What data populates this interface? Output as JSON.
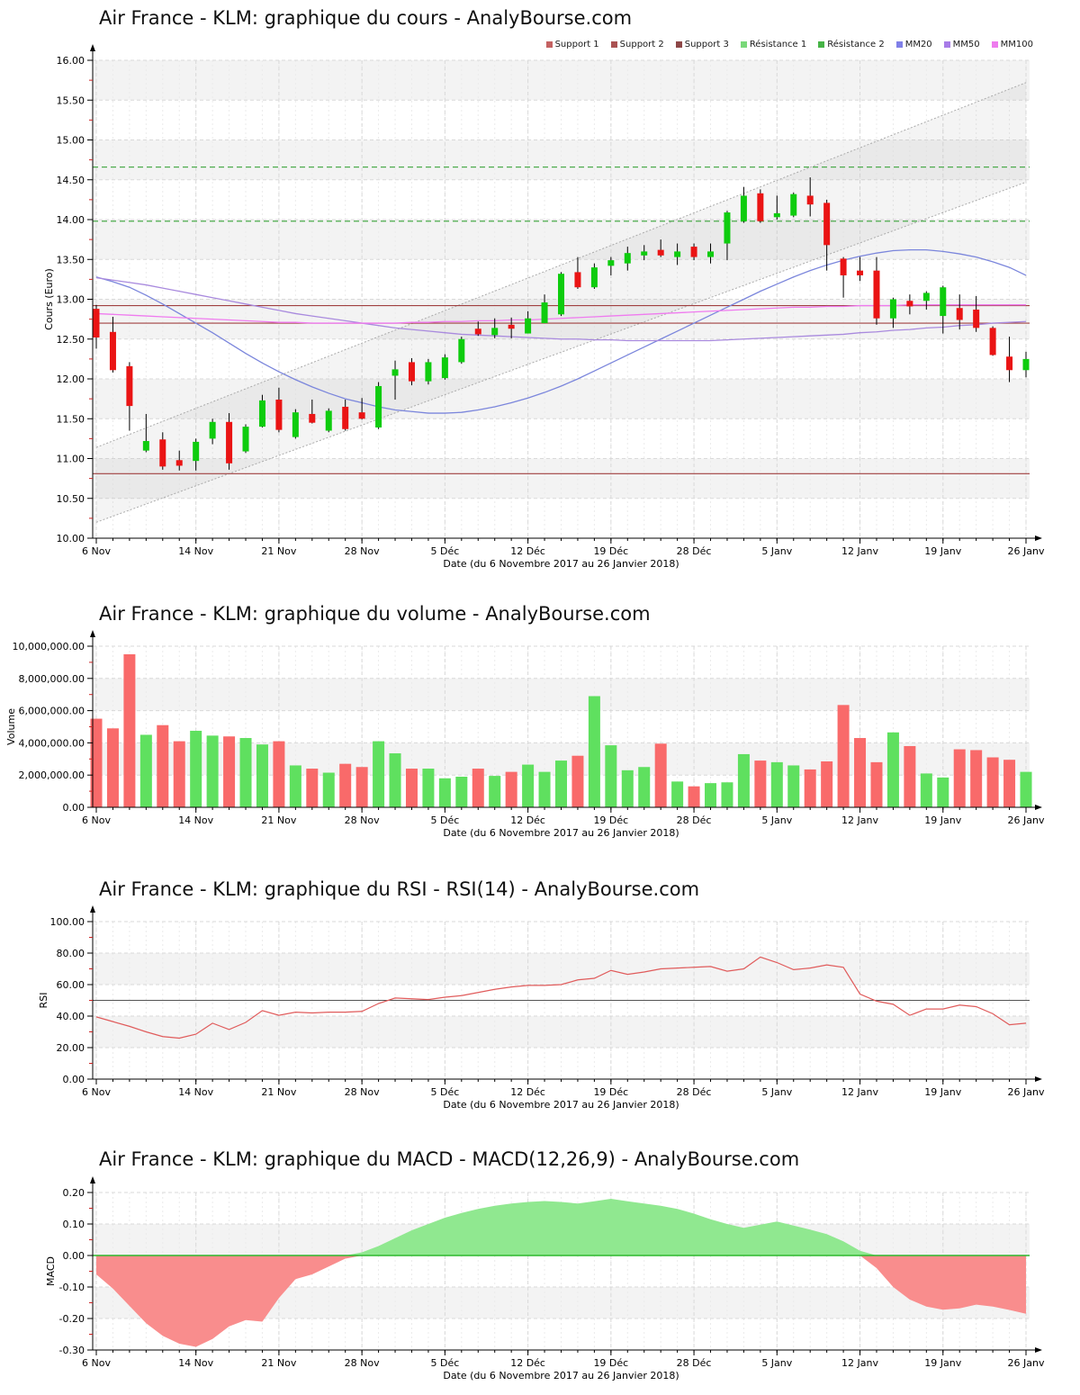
{
  "x_axis": {
    "label": "Date (du 6 Novembre 2017 au 26 Janvier 2018)",
    "days": 57,
    "ticks": [
      {
        "label": "6 Nov",
        "day": 0
      },
      {
        "label": "14 Nov",
        "day": 6
      },
      {
        "label": "21 Nov",
        "day": 11
      },
      {
        "label": "28 Nov",
        "day": 16
      },
      {
        "label": "5 Déc",
        "day": 21
      },
      {
        "label": "12 Déc",
        "day": 26
      },
      {
        "label": "19 Déc",
        "day": 31
      },
      {
        "label": "28 Déc",
        "day": 36
      },
      {
        "label": "5 Janv",
        "day": 41
      },
      {
        "label": "12 Janv",
        "day": 46
      },
      {
        "label": "19 Janv",
        "day": 51
      },
      {
        "label": "26 Janv",
        "day": 56
      }
    ]
  },
  "legend": {
    "items": [
      {
        "name": "legend-support-1",
        "label": "Support 1",
        "color": "#c46262"
      },
      {
        "name": "legend-support-2",
        "label": "Support 2",
        "color": "#aa5252"
      },
      {
        "name": "legend-support-3",
        "label": "Support 3",
        "color": "#8d4747"
      },
      {
        "name": "legend-resistance-1",
        "label": "Résistance 1",
        "color": "#79d879"
      },
      {
        "name": "legend-resistance-2",
        "label": "Résistance 2",
        "color": "#46b446"
      },
      {
        "name": "legend-mm20",
        "label": "MM20",
        "color": "#8080e8"
      },
      {
        "name": "legend-mm50",
        "label": "MM50",
        "color": "#a87ce8"
      },
      {
        "name": "legend-mm100",
        "label": "MM100",
        "color": "#ee7bee"
      }
    ]
  },
  "chart_data": [
    {
      "type": "candlestick",
      "title": "Air France - KLM: graphique du cours - AnalyBourse.com",
      "ylabel": "Cours (Euro)",
      "xlabel": "Date (du 6 Novembre 2017 au 26 Janvier 2018)",
      "ylim": [
        10,
        16
      ],
      "y_step": 0.5,
      "y_format": "fixed2",
      "supports": [
        12.92,
        12.7,
        10.81
      ],
      "resistances": [
        13.98,
        14.66
      ],
      "channel_upper": [
        11.14,
        15.72
      ],
      "channel_lower": [
        10.2,
        14.47
      ],
      "colors": {
        "up": "#0ecc0e",
        "down": "#ea1414",
        "wick": "#000000",
        "mm20": "#7b86dc",
        "mm50": "#a98ade",
        "mm100": "#ef7bef",
        "support": "#a04040",
        "resistance": "#4cab4c",
        "channel": "#ababab"
      },
      "ohlc": [
        [
          12.88,
          12.93,
          12.38,
          12.52
        ],
        [
          12.59,
          12.78,
          12.08,
          12.11
        ],
        [
          12.16,
          12.21,
          11.35,
          11.66
        ],
        [
          11.1,
          11.56,
          11.08,
          11.22
        ],
        [
          11.24,
          11.33,
          10.86,
          10.9
        ],
        [
          10.98,
          11.1,
          10.85,
          10.91
        ],
        [
          10.97,
          11.25,
          10.85,
          11.21
        ],
        [
          11.25,
          11.5,
          11.18,
          11.46
        ],
        [
          11.46,
          11.57,
          10.86,
          10.94
        ],
        [
          11.09,
          11.43,
          11.07,
          11.4
        ],
        [
          11.4,
          11.8,
          11.39,
          11.73
        ],
        [
          11.74,
          11.89,
          11.33,
          11.36
        ],
        [
          11.27,
          11.62,
          11.25,
          11.58
        ],
        [
          11.56,
          11.74,
          11.44,
          11.45
        ],
        [
          11.35,
          11.63,
          11.33,
          11.6
        ],
        [
          11.65,
          11.74,
          11.35,
          11.37
        ],
        [
          11.58,
          11.76,
          11.49,
          11.5
        ],
        [
          11.39,
          11.96,
          11.37,
          11.91
        ],
        [
          12.04,
          12.23,
          11.74,
          12.12
        ],
        [
          12.21,
          12.26,
          11.92,
          11.97
        ],
        [
          11.97,
          12.25,
          11.93,
          12.21
        ],
        [
          12.01,
          12.31,
          11.99,
          12.27
        ],
        [
          12.21,
          12.53,
          12.19,
          12.5
        ],
        [
          12.63,
          12.72,
          12.54,
          12.56
        ],
        [
          12.55,
          12.76,
          12.51,
          12.64
        ],
        [
          12.68,
          12.77,
          12.51,
          12.63
        ],
        [
          12.57,
          12.85,
          12.57,
          12.76
        ],
        [
          12.7,
          13.06,
          12.7,
          12.96
        ],
        [
          12.81,
          13.34,
          12.79,
          13.32
        ],
        [
          13.34,
          13.53,
          13.13,
          13.15
        ],
        [
          13.15,
          13.45,
          13.13,
          13.4
        ],
        [
          13.42,
          13.53,
          13.3,
          13.49
        ],
        [
          13.45,
          13.66,
          13.36,
          13.58
        ],
        [
          13.55,
          13.68,
          13.49,
          13.6
        ],
        [
          13.62,
          13.75,
          13.53,
          13.55
        ],
        [
          13.53,
          13.7,
          13.43,
          13.6
        ],
        [
          13.66,
          13.7,
          13.49,
          13.53
        ],
        [
          13.53,
          13.7,
          13.45,
          13.6
        ],
        [
          13.7,
          14.11,
          13.49,
          14.09
        ],
        [
          13.98,
          14.41,
          13.96,
          14.3
        ],
        [
          14.33,
          14.38,
          13.96,
          13.98
        ],
        [
          14.03,
          14.3,
          14.0,
          14.08
        ],
        [
          14.05,
          14.34,
          14.03,
          14.32
        ],
        [
          14.3,
          14.53,
          14.04,
          14.19
        ],
        [
          14.21,
          14.25,
          13.36,
          13.68
        ],
        [
          13.51,
          13.53,
          13.02,
          13.3
        ],
        [
          13.36,
          13.53,
          13.23,
          13.3
        ],
        [
          13.36,
          13.53,
          12.68,
          12.76
        ],
        [
          12.76,
          13.02,
          12.64,
          13.0
        ],
        [
          12.98,
          13.06,
          12.81,
          12.91
        ],
        [
          12.98,
          13.1,
          12.87,
          13.08
        ],
        [
          12.79,
          13.17,
          12.57,
          13.15
        ],
        [
          12.89,
          13.06,
          12.62,
          12.74
        ],
        [
          12.87,
          13.04,
          12.59,
          12.64
        ],
        [
          12.64,
          12.66,
          12.29,
          12.3
        ],
        [
          12.28,
          12.53,
          11.96,
          12.11
        ],
        [
          12.11,
          12.34,
          12.02,
          12.25
        ]
      ],
      "mm20": [
        13.28,
        13.22,
        13.15,
        13.05,
        12.94,
        12.82,
        12.7,
        12.58,
        12.45,
        12.32,
        12.2,
        12.09,
        11.99,
        11.9,
        11.82,
        11.75,
        11.7,
        11.65,
        11.61,
        11.59,
        11.57,
        11.57,
        11.58,
        11.61,
        11.65,
        11.7,
        11.76,
        11.83,
        11.91,
        12.0,
        12.1,
        12.2,
        12.3,
        12.4,
        12.5,
        12.6,
        12.7,
        12.8,
        12.9,
        13.0,
        13.1,
        13.19,
        13.28,
        13.36,
        13.43,
        13.49,
        13.54,
        13.58,
        13.61,
        13.62,
        13.62,
        13.6,
        13.57,
        13.53,
        13.47,
        13.4,
        13.3
      ],
      "mm50": [
        13.27,
        13.24,
        13.21,
        13.18,
        13.14,
        13.1,
        13.06,
        13.02,
        12.98,
        12.94,
        12.9,
        12.86,
        12.82,
        12.79,
        12.76,
        12.73,
        12.7,
        12.67,
        12.64,
        12.62,
        12.6,
        12.58,
        12.56,
        12.55,
        12.54,
        12.53,
        12.52,
        12.51,
        12.5,
        12.5,
        12.49,
        12.49,
        12.48,
        12.48,
        12.48,
        12.48,
        12.48,
        12.48,
        12.49,
        12.5,
        12.51,
        12.52,
        12.53,
        12.54,
        12.55,
        12.56,
        12.58,
        12.59,
        12.61,
        12.62,
        12.64,
        12.65,
        12.67,
        12.68,
        12.7,
        12.71,
        12.72
      ],
      "mm100": [
        12.82,
        12.81,
        12.8,
        12.79,
        12.78,
        12.77,
        12.76,
        12.75,
        12.74,
        12.73,
        12.72,
        12.71,
        12.71,
        12.7,
        12.7,
        12.7,
        12.7,
        12.7,
        12.7,
        12.71,
        12.71,
        12.72,
        12.72,
        12.73,
        12.73,
        12.74,
        12.74,
        12.75,
        12.76,
        12.77,
        12.78,
        12.79,
        12.8,
        12.81,
        12.82,
        12.83,
        12.84,
        12.85,
        12.86,
        12.87,
        12.88,
        12.89,
        12.9,
        12.9,
        12.91,
        12.91,
        12.92,
        12.92,
        12.92,
        12.93,
        12.93,
        12.93,
        12.93,
        12.93,
        12.93,
        12.93,
        12.93
      ]
    },
    {
      "type": "bar",
      "title": "Air France - KLM: graphique du volume - AnalyBourse.com",
      "ylabel": "Volume",
      "xlabel": "Date (du 6 Novembre 2017 au 26 Janvier 2018)",
      "ylim": [
        0,
        10000000
      ],
      "y_step": 2000000,
      "y_format": "money",
      "colors": {
        "up": "#5fe05f",
        "down": "#f96a6a"
      },
      "values": [
        5500000,
        4900000,
        9500000,
        4500000,
        5100000,
        4100000,
        4750000,
        4450000,
        4400000,
        4300000,
        3900000,
        4100000,
        2600000,
        2400000,
        2150000,
        2700000,
        2500000,
        4100000,
        3350000,
        2400000,
        2400000,
        1800000,
        1900000,
        2400000,
        1950000,
        2200000,
        2650000,
        2200000,
        2900000,
        3200000,
        6900000,
        3850000,
        2300000,
        2500000,
        3950000,
        1600000,
        1300000,
        1500000,
        1550000,
        3300000,
        2900000,
        2800000,
        2600000,
        2350000,
        2850000,
        6350000,
        4300000,
        2800000,
        4650000,
        3800000,
        2100000,
        1850000,
        3600000,
        3550000,
        3100000,
        2950000,
        2200000
      ]
    },
    {
      "type": "line",
      "title": "Air France - KLM: graphique du RSI - RSI(14) - AnalyBourse.com",
      "ylabel": "RSI",
      "xlabel": "Date (du 6 Novembre 2017 au 26 Janvier 2018)",
      "ylim": [
        0,
        100
      ],
      "y_step": 20,
      "y_format": "fixed2",
      "center_line": 50,
      "colors": {
        "line": "#e05b5b",
        "hline": "#555555"
      },
      "values": [
        39.5,
        36.5,
        33.5,
        30,
        27,
        26,
        28.5,
        35.5,
        31.5,
        36,
        43.5,
        40.5,
        42.5,
        42,
        42.5,
        42.5,
        43,
        48,
        51.5,
        51,
        50.5,
        52,
        53,
        55,
        57,
        58.5,
        59.5,
        59.5,
        60,
        63,
        64,
        69,
        66.5,
        68,
        70,
        70.5,
        71,
        71.5,
        68.5,
        70,
        77.5,
        74,
        69.5,
        70.5,
        72.5,
        71,
        54,
        49.5,
        47.5,
        40.5,
        44.5,
        44.5,
        47,
        46,
        41.5,
        34.5,
        35.5
      ]
    },
    {
      "type": "area",
      "title": "Air France - KLM: graphique du MACD - MACD(12,26,9) - AnalyBourse.com",
      "ylabel": "MACD",
      "xlabel": "Date (du 6 Novembre 2017 au 26 Janvier 2018)",
      "ylim": [
        -0.3,
        0.2
      ],
      "y_step": 0.1,
      "y_format": "fixed2",
      "colors": {
        "positive": "#90e890",
        "negative": "#f98d8d",
        "baseline": "#2db82d"
      },
      "values": [
        -0.06,
        -0.105,
        -0.16,
        -0.215,
        -0.255,
        -0.28,
        -0.29,
        -0.265,
        -0.225,
        -0.205,
        -0.21,
        -0.135,
        -0.075,
        -0.06,
        -0.035,
        -0.01,
        0.01,
        0.03,
        0.055,
        0.08,
        0.1,
        0.12,
        0.135,
        0.148,
        0.158,
        0.165,
        0.17,
        0.173,
        0.17,
        0.165,
        0.172,
        0.18,
        0.172,
        0.165,
        0.158,
        0.148,
        0.133,
        0.115,
        0.1,
        0.088,
        0.098,
        0.108,
        0.095,
        0.082,
        0.068,
        0.045,
        0.015,
        -0.04,
        -0.1,
        -0.14,
        -0.162,
        -0.172,
        -0.168,
        -0.156,
        -0.162,
        -0.173,
        -0.185
      ]
    }
  ]
}
